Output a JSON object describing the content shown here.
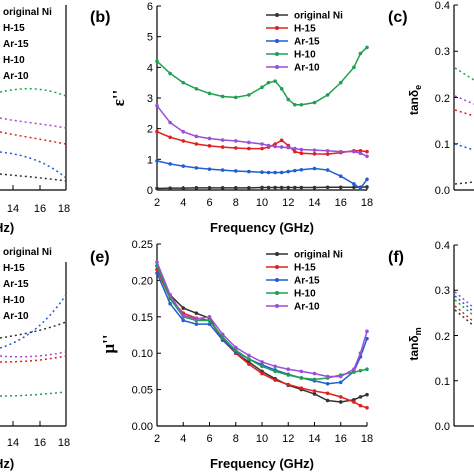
{
  "colors": {
    "original Ni": "#333333",
    "H-15": "#e02020",
    "Ar-15": "#1f5fd0",
    "H-10": "#1fa050",
    "Ar-10": "#9b4fd6"
  },
  "series_names": [
    "original Ni",
    "H-15",
    "Ar-15",
    "H-10",
    "Ar-10"
  ],
  "left_top": {
    "legend": [
      "original Ni",
      "H-15",
      "Ar-15",
      "H-10",
      "Ar-10"
    ],
    "tick_labels": [
      "14",
      "16",
      "18"
    ],
    "xlabel_fragment": "Hz)"
  },
  "left_bottom": {
    "legend": [
      "original Ni",
      "H-15",
      "Ar-15",
      "H-10",
      "Ar-10"
    ],
    "tick_labels": [
      "14",
      "16",
      "18"
    ],
    "xlabel_fragment": "Hz)"
  },
  "right_top": {
    "panel_label": "(c)",
    "ylabel": "tanδ",
    "ylabel_sub": "e",
    "tick_labels": [
      "0.0",
      "0.1",
      "0.2",
      "0.3",
      "0.4"
    ]
  },
  "right_bottom": {
    "panel_label": "(f)",
    "ylabel": "tanδ",
    "ylabel_sub": "m",
    "tick_labels": [
      "0.0",
      "0.1",
      "0.2",
      "0.3",
      "0.4"
    ]
  },
  "chart_data": [
    {
      "type": "line",
      "panel_label": "(b)",
      "ylabel": "ε''",
      "xlabel": "Frequency (GHz)",
      "xlim": [
        2,
        18
      ],
      "ylim": [
        0,
        6
      ],
      "xticks": [
        2,
        4,
        6,
        8,
        10,
        12,
        14,
        16,
        18
      ],
      "yticks": [
        0,
        1,
        2,
        3,
        4,
        5,
        6
      ],
      "legend_position": "top-right",
      "x": [
        2,
        3,
        4,
        5,
        6,
        7,
        8,
        9,
        10,
        10.5,
        11,
        11.5,
        12,
        12.5,
        13,
        14,
        15,
        16,
        17,
        17.5,
        18
      ],
      "series": [
        {
          "name": "original Ni",
          "values": [
            0.05,
            0.06,
            0.06,
            0.07,
            0.07,
            0.07,
            0.07,
            0.07,
            0.08,
            0.08,
            0.08,
            0.08,
            0.08,
            0.08,
            0.08,
            0.08,
            0.09,
            0.09,
            0.09,
            0.09,
            0.1
          ]
        },
        {
          "name": "H-15",
          "values": [
            1.9,
            1.72,
            1.6,
            1.5,
            1.44,
            1.4,
            1.37,
            1.35,
            1.35,
            1.4,
            1.5,
            1.62,
            1.45,
            1.25,
            1.2,
            1.18,
            1.17,
            1.22,
            1.28,
            1.28,
            1.25
          ]
        },
        {
          "name": "Ar-15",
          "values": [
            0.95,
            0.85,
            0.78,
            0.72,
            0.68,
            0.65,
            0.62,
            0.6,
            0.58,
            0.57,
            0.57,
            0.57,
            0.6,
            0.63,
            0.66,
            0.7,
            0.65,
            0.45,
            0.2,
            0.05,
            0.35
          ]
        },
        {
          "name": "H-10",
          "values": [
            4.2,
            3.8,
            3.5,
            3.3,
            3.15,
            3.05,
            3.02,
            3.1,
            3.35,
            3.5,
            3.55,
            3.3,
            2.95,
            2.78,
            2.78,
            2.85,
            3.1,
            3.5,
            4.0,
            4.45,
            4.65
          ]
        },
        {
          "name": "Ar-10",
          "values": [
            2.75,
            2.2,
            1.9,
            1.75,
            1.68,
            1.63,
            1.6,
            1.55,
            1.5,
            1.45,
            1.42,
            1.4,
            1.38,
            1.35,
            1.32,
            1.3,
            1.28,
            1.25,
            1.25,
            1.2,
            1.1
          ]
        }
      ]
    },
    {
      "type": "line",
      "panel_label": "(e)",
      "ylabel": "μ''",
      "xlabel": "Frequency (GHz)",
      "xlim": [
        2,
        18
      ],
      "ylim": [
        0,
        0.25
      ],
      "xticks": [
        2,
        4,
        6,
        8,
        10,
        12,
        14,
        16,
        18
      ],
      "yticks": [
        0.0,
        0.05,
        0.1,
        0.15,
        0.2,
        0.25
      ],
      "legend_position": "top-right",
      "x": [
        2,
        3,
        4,
        5,
        6,
        7,
        8,
        9,
        10,
        11,
        12,
        13,
        14,
        15,
        16,
        17,
        17.5,
        18
      ],
      "series": [
        {
          "name": "original Ni",
          "values": [
            0.22,
            0.18,
            0.162,
            0.155,
            0.148,
            0.118,
            0.1,
            0.088,
            0.075,
            0.065,
            0.056,
            0.05,
            0.044,
            0.035,
            0.033,
            0.036,
            0.04,
            0.043
          ]
        },
        {
          "name": "H-15",
          "values": [
            0.215,
            0.175,
            0.155,
            0.148,
            0.145,
            0.12,
            0.1,
            0.085,
            0.072,
            0.063,
            0.057,
            0.052,
            0.048,
            0.045,
            0.04,
            0.033,
            0.028,
            0.025
          ]
        },
        {
          "name": "Ar-15",
          "values": [
            0.21,
            0.168,
            0.145,
            0.14,
            0.14,
            0.118,
            0.102,
            0.092,
            0.084,
            0.077,
            0.071,
            0.066,
            0.062,
            0.058,
            0.06,
            0.075,
            0.095,
            0.12
          ]
        },
        {
          "name": "H-10",
          "values": [
            0.22,
            0.175,
            0.15,
            0.145,
            0.145,
            0.122,
            0.104,
            0.092,
            0.082,
            0.075,
            0.07,
            0.066,
            0.064,
            0.066,
            0.07,
            0.074,
            0.076,
            0.078
          ]
        },
        {
          "name": "Ar-10",
          "values": [
            0.225,
            0.18,
            0.152,
            0.147,
            0.15,
            0.126,
            0.108,
            0.097,
            0.088,
            0.082,
            0.078,
            0.075,
            0.072,
            0.068,
            0.068,
            0.078,
            0.1,
            0.13
          ]
        }
      ]
    }
  ]
}
